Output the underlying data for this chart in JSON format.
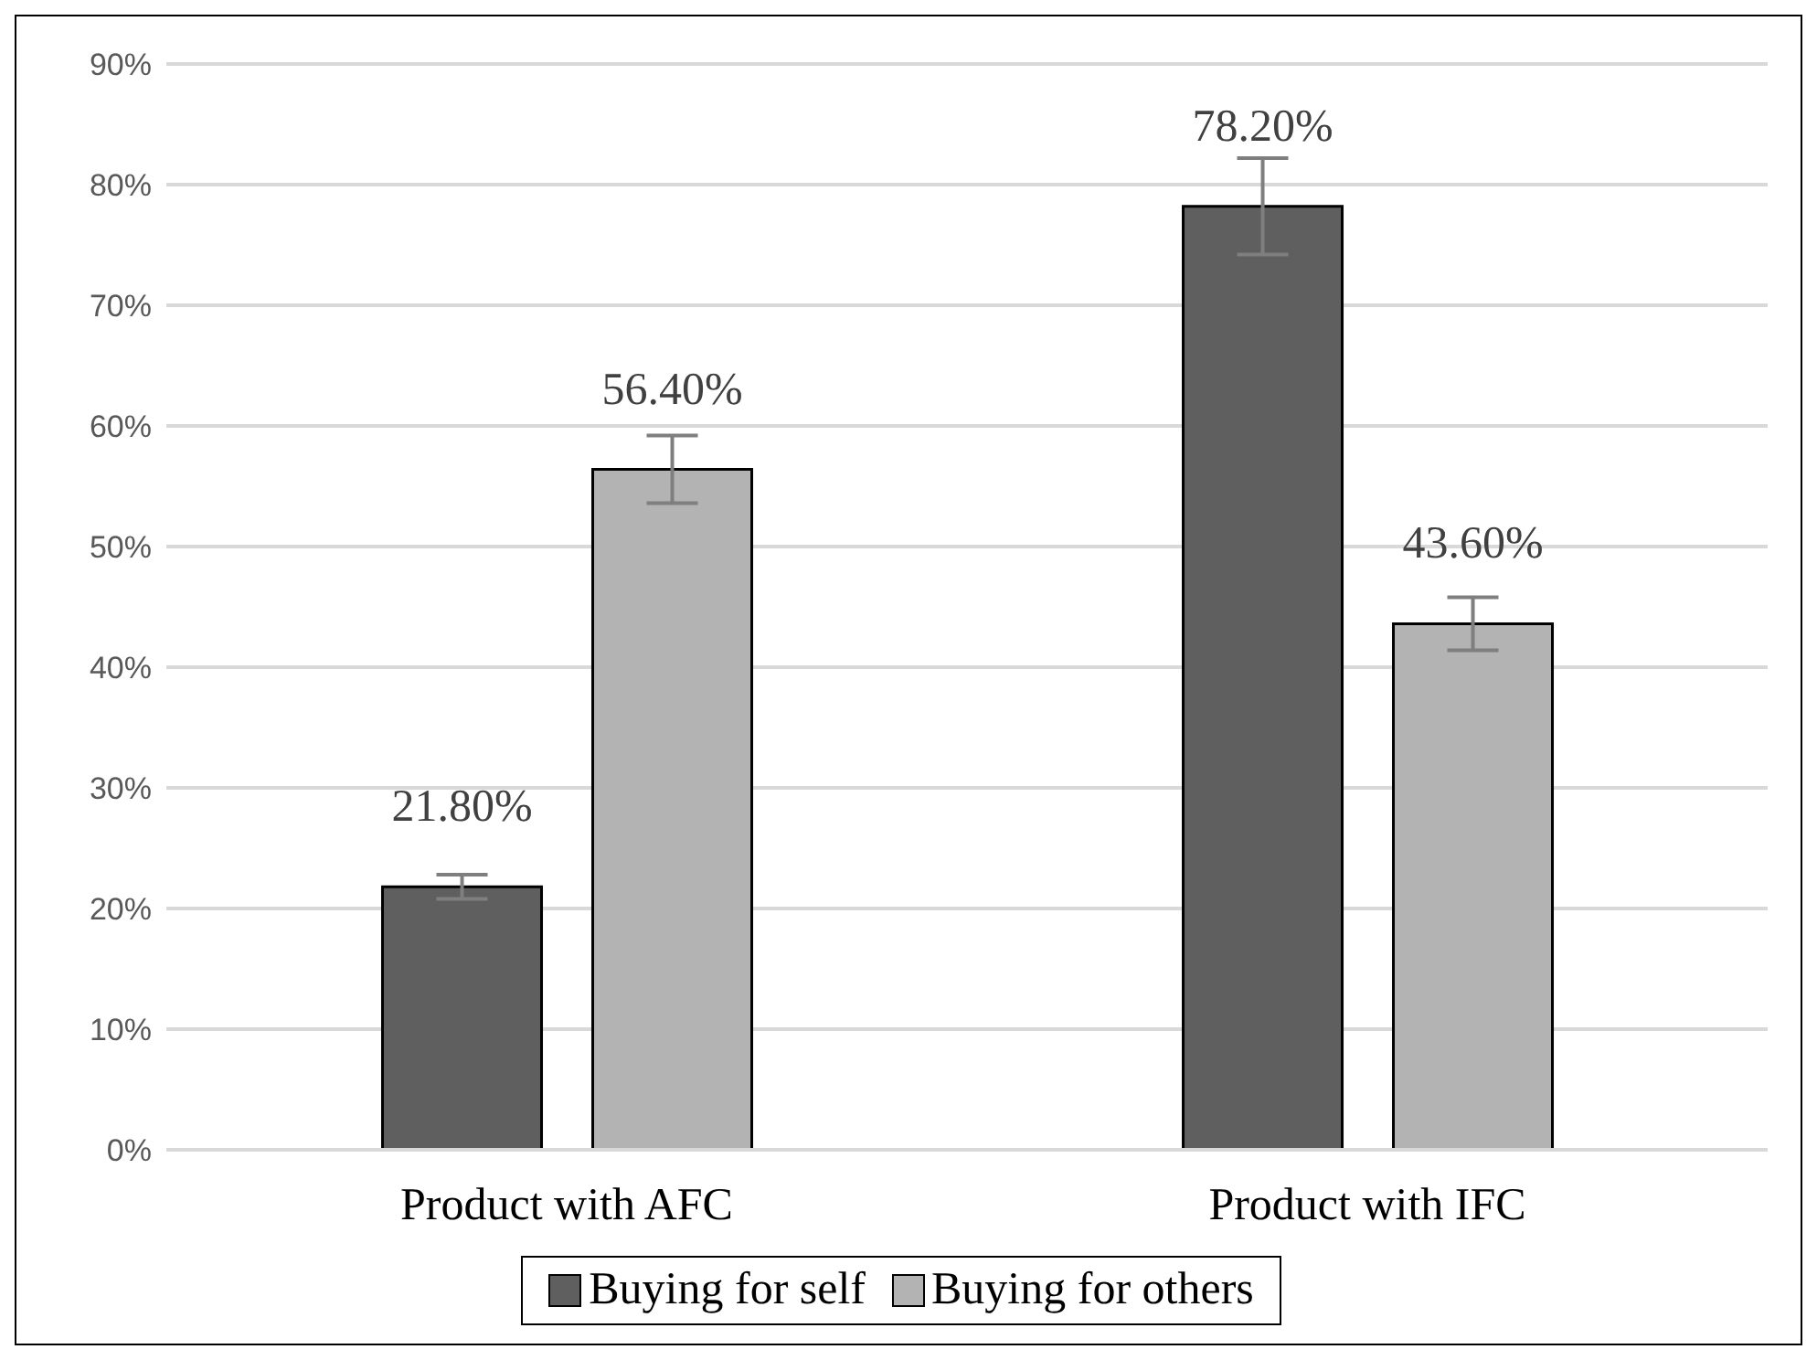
{
  "chart_data": {
    "type": "bar",
    "categories": [
      "Product with AFC",
      "Product with IFC"
    ],
    "series": [
      {
        "name": "Buying for self",
        "color": "#5f5f5f",
        "values": [
          21.8,
          78.2
        ],
        "errors": [
          1,
          4
        ],
        "value_labels": [
          "21.80%",
          "78.20%"
        ]
      },
      {
        "name": "Buying for others",
        "color": "#b3b3b3",
        "values": [
          56.4,
          43.6
        ],
        "errors": [
          2.8,
          2.2
        ],
        "value_labels": [
          "56.40%",
          "43.60%"
        ]
      }
    ],
    "ylim": [
      0,
      90
    ],
    "yticks": [
      {
        "value": 0,
        "label": "0%"
      },
      {
        "value": 10,
        "label": "10%"
      },
      {
        "value": 20,
        "label": "20%"
      },
      {
        "value": 30,
        "label": "30%"
      },
      {
        "value": 40,
        "label": "40%"
      },
      {
        "value": 50,
        "label": "50%"
      },
      {
        "value": 60,
        "label": "60%"
      },
      {
        "value": 70,
        "label": "70%"
      },
      {
        "value": 80,
        "label": "80%"
      },
      {
        "value": 90,
        "label": "90%"
      }
    ],
    "grid": "y",
    "legend": "bottom"
  }
}
